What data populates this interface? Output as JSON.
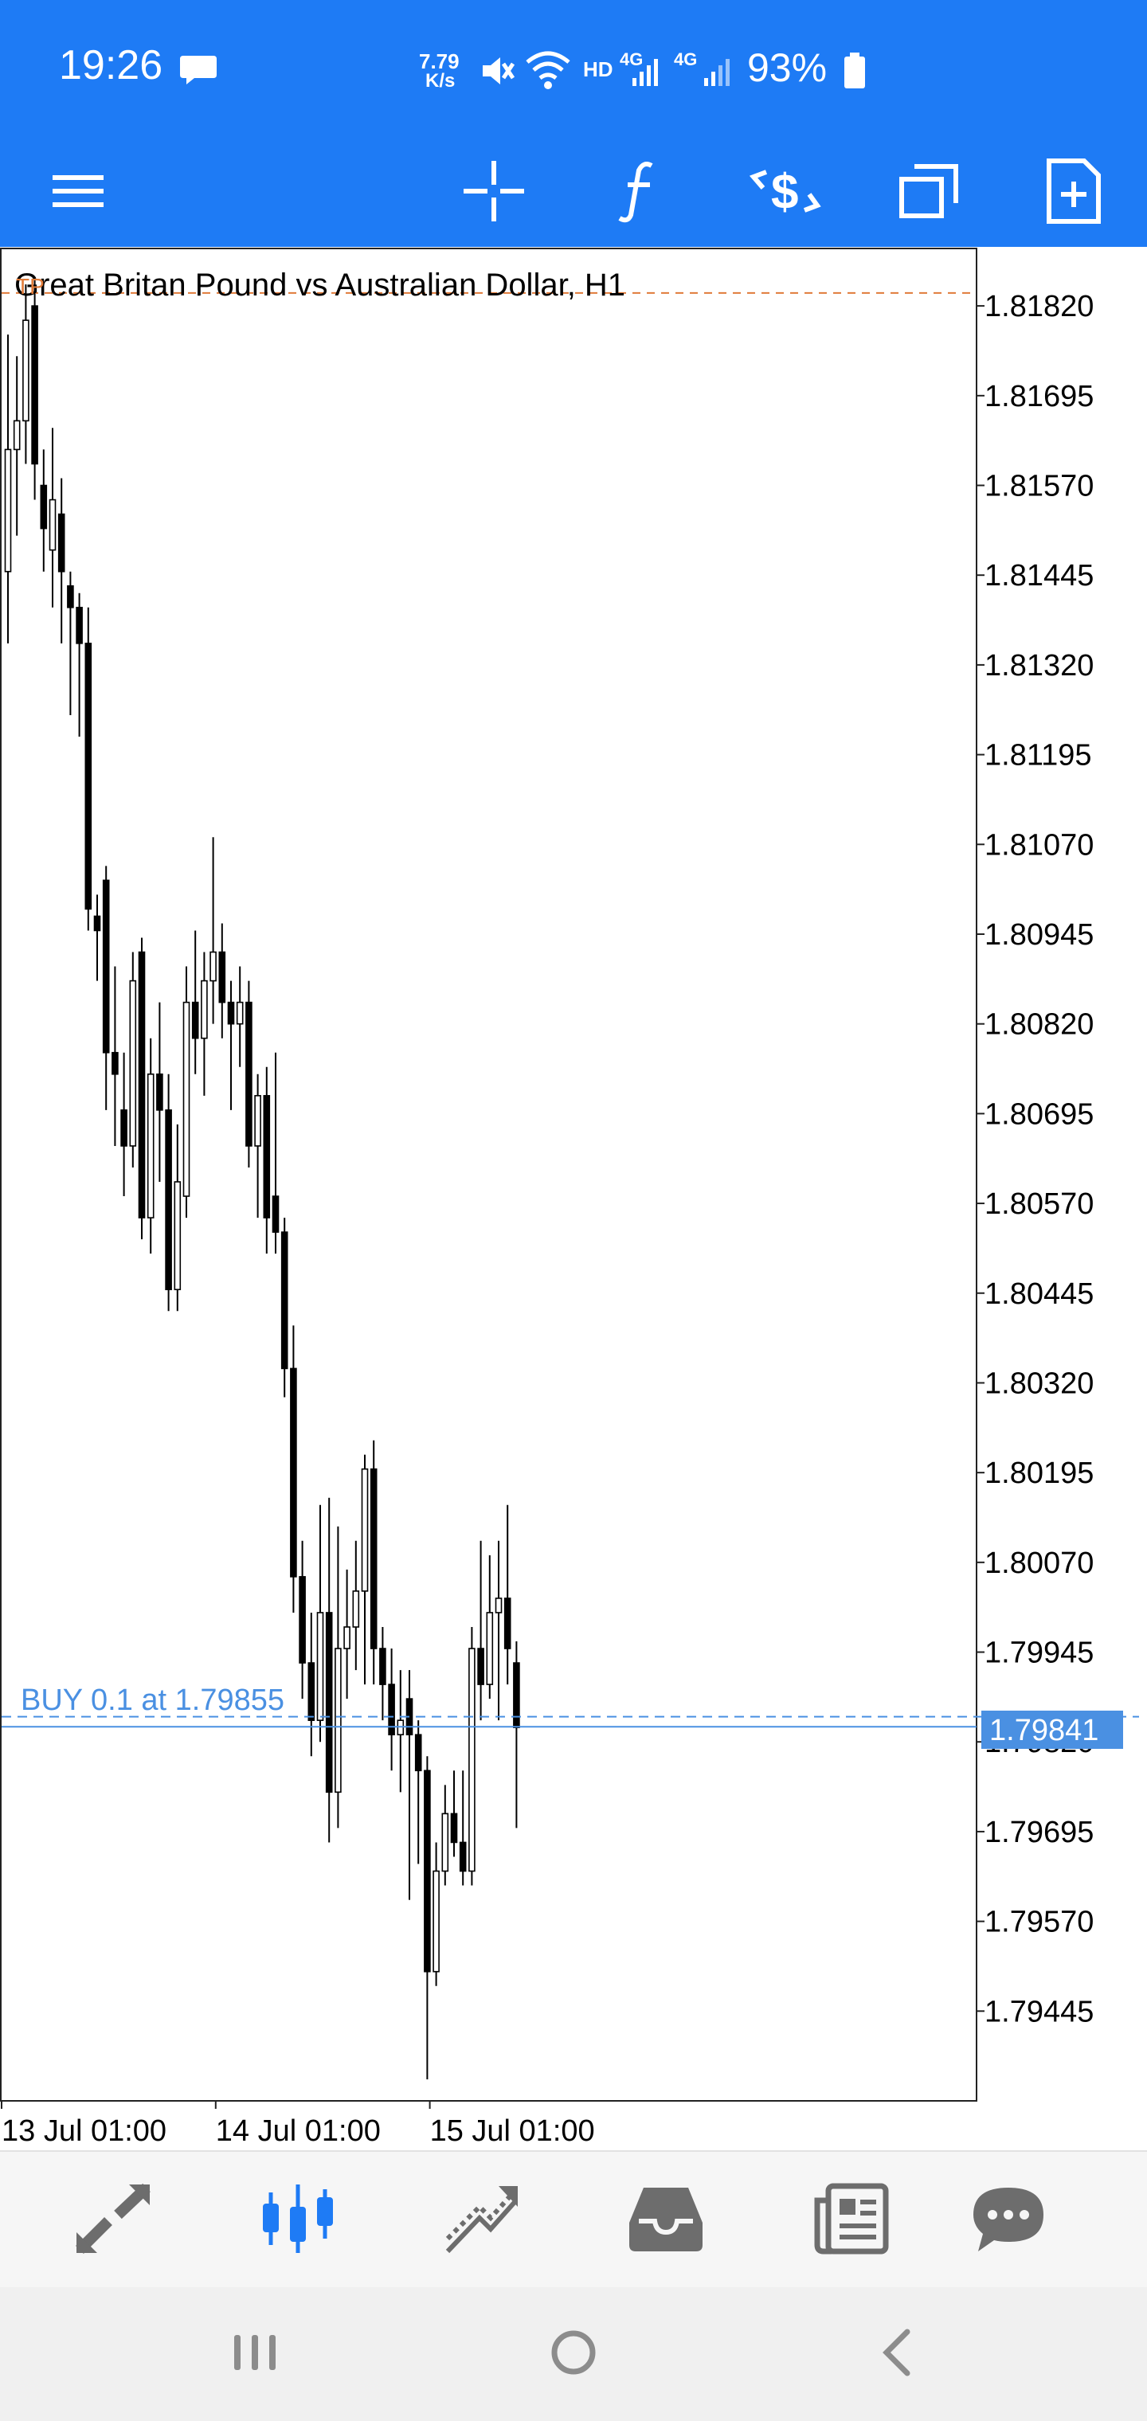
{
  "status_bar": {
    "time": "19:26",
    "net_speed_value": "7.79",
    "net_speed_unit": "K/s",
    "hd_label": "HD",
    "net1_label": "4G",
    "net2_label": "4G",
    "battery": "93%",
    "icons": [
      "message-icon",
      "mute-icon",
      "wifi-icon",
      "signal-icon",
      "signal-icon",
      "battery-icon"
    ]
  },
  "toolbar": {
    "icons": [
      "menu-icon",
      "crosshair-icon",
      "indicator-function-icon",
      "trade-icon",
      "window-icon",
      "add-object-icon"
    ]
  },
  "chart": {
    "title": "Great Britan Pound vs Australian Dollar, H1",
    "marker": "TP",
    "order_label": "BUY 0.1 at 1.79855",
    "current_price": "1.79841",
    "tp_price": 1.81838,
    "order_price": 1.79855,
    "bid_price": 1.79841,
    "bid_color": "#4a90e2",
    "tp_color": "#e07b39"
  },
  "chart_data": {
    "type": "candlestick",
    "title": "Great Britan Pound vs Australian Dollar, H1",
    "ylim": [
      1.7932,
      1.819
    ],
    "y_ticks": [
      "1.81820",
      "1.81695",
      "1.81570",
      "1.81445",
      "1.81320",
      "1.81195",
      "1.81070",
      "1.80945",
      "1.80820",
      "1.80695",
      "1.80570",
      "1.80445",
      "1.80320",
      "1.80195",
      "1.80070",
      "1.79945",
      "1.79820",
      "1.79695",
      "1.79570",
      "1.79445"
    ],
    "x_ticks": [
      {
        "label": "13 Jul 01:00",
        "index": 0
      },
      {
        "label": "14 Jul 01:00",
        "index": 24
      },
      {
        "label": "15 Jul 01:00",
        "index": 48
      }
    ],
    "candles": [
      {
        "o": 1.8145,
        "h": 1.8178,
        "l": 1.8135,
        "c": 1.8162
      },
      {
        "o": 1.8162,
        "h": 1.8175,
        "l": 1.815,
        "c": 1.8166
      },
      {
        "o": 1.8166,
        "h": 1.8185,
        "l": 1.816,
        "c": 1.818
      },
      {
        "o": 1.8182,
        "h": 1.8186,
        "l": 1.8155,
        "c": 1.816
      },
      {
        "o": 1.8157,
        "h": 1.8162,
        "l": 1.8145,
        "c": 1.8151
      },
      {
        "o": 1.8148,
        "h": 1.8165,
        "l": 1.814,
        "c": 1.8155
      },
      {
        "o": 1.8153,
        "h": 1.8158,
        "l": 1.8135,
        "c": 1.8145
      },
      {
        "o": 1.8143,
        "h": 1.8145,
        "l": 1.8125,
        "c": 1.814
      },
      {
        "o": 1.814,
        "h": 1.8142,
        "l": 1.8122,
        "c": 1.8135
      },
      {
        "o": 1.8135,
        "h": 1.814,
        "l": 1.8095,
        "c": 1.8098
      },
      {
        "o": 1.8097,
        "h": 1.81,
        "l": 1.8088,
        "c": 1.8095
      },
      {
        "o": 1.8102,
        "h": 1.8104,
        "l": 1.807,
        "c": 1.8078
      },
      {
        "o": 1.8078,
        "h": 1.809,
        "l": 1.8065,
        "c": 1.8075
      },
      {
        "o": 1.807,
        "h": 1.8078,
        "l": 1.8058,
        "c": 1.8065
      },
      {
        "o": 1.8065,
        "h": 1.8092,
        "l": 1.8062,
        "c": 1.8088
      },
      {
        "o": 1.8092,
        "h": 1.8094,
        "l": 1.8052,
        "c": 1.8055
      },
      {
        "o": 1.8055,
        "h": 1.808,
        "l": 1.805,
        "c": 1.8075
      },
      {
        "o": 1.8075,
        "h": 1.8085,
        "l": 1.806,
        "c": 1.807
      },
      {
        "o": 1.807,
        "h": 1.8075,
        "l": 1.8042,
        "c": 1.8045
      },
      {
        "o": 1.8045,
        "h": 1.8068,
        "l": 1.8042,
        "c": 1.806
      },
      {
        "o": 1.8058,
        "h": 1.809,
        "l": 1.8055,
        "c": 1.8085
      },
      {
        "o": 1.8085,
        "h": 1.8095,
        "l": 1.8075,
        "c": 1.808
      },
      {
        "o": 1.808,
        "h": 1.8092,
        "l": 1.8072,
        "c": 1.8088
      },
      {
        "o": 1.8088,
        "h": 1.8108,
        "l": 1.8082,
        "c": 1.8092
      },
      {
        "o": 1.8092,
        "h": 1.8096,
        "l": 1.808,
        "c": 1.8085
      },
      {
        "o": 1.8085,
        "h": 1.8088,
        "l": 1.807,
        "c": 1.8082
      },
      {
        "o": 1.8082,
        "h": 1.809,
        "l": 1.8076,
        "c": 1.8085
      },
      {
        "o": 1.8085,
        "h": 1.8088,
        "l": 1.8062,
        "c": 1.8065
      },
      {
        "o": 1.8065,
        "h": 1.8075,
        "l": 1.8055,
        "c": 1.8072
      },
      {
        "o": 1.8072,
        "h": 1.8076,
        "l": 1.805,
        "c": 1.8055
      },
      {
        "o": 1.8058,
        "h": 1.8078,
        "l": 1.805,
        "c": 1.8053
      },
      {
        "o": 1.8053,
        "h": 1.8055,
        "l": 1.803,
        "c": 1.8034
      },
      {
        "o": 1.8034,
        "h": 1.804,
        "l": 1.8,
        "c": 1.8005
      },
      {
        "o": 1.8005,
        "h": 1.801,
        "l": 1.7988,
        "c": 1.7993
      },
      {
        "o": 1.7993,
        "h": 1.8,
        "l": 1.798,
        "c": 1.7985
      },
      {
        "o": 1.7985,
        "h": 1.8015,
        "l": 1.7982,
        "c": 1.8
      },
      {
        "o": 1.8,
        "h": 1.8016,
        "l": 1.7968,
        "c": 1.7975
      },
      {
        "o": 1.7975,
        "h": 1.8012,
        "l": 1.797,
        "c": 1.7995
      },
      {
        "o": 1.7995,
        "h": 1.8006,
        "l": 1.7988,
        "c": 1.7998
      },
      {
        "o": 1.7998,
        "h": 1.801,
        "l": 1.7992,
        "c": 1.8003
      },
      {
        "o": 1.8003,
        "h": 1.8022,
        "l": 1.799,
        "c": 1.802
      },
      {
        "o": 1.802,
        "h": 1.8024,
        "l": 1.799,
        "c": 1.7995
      },
      {
        "o": 1.7995,
        "h": 1.7998,
        "l": 1.7985,
        "c": 1.799
      },
      {
        "o": 1.799,
        "h": 1.7995,
        "l": 1.7978,
        "c": 1.7983
      },
      {
        "o": 1.7983,
        "h": 1.7992,
        "l": 1.7975,
        "c": 1.7985
      },
      {
        "o": 1.7988,
        "h": 1.7992,
        "l": 1.796,
        "c": 1.7983
      },
      {
        "o": 1.7983,
        "h": 1.7985,
        "l": 1.7965,
        "c": 1.7978
      },
      {
        "o": 1.7978,
        "h": 1.798,
        "l": 1.7935,
        "c": 1.795
      },
      {
        "o": 1.795,
        "h": 1.7968,
        "l": 1.7948,
        "c": 1.7964
      },
      {
        "o": 1.7964,
        "h": 1.7976,
        "l": 1.7962,
        "c": 1.7972
      },
      {
        "o": 1.7972,
        "h": 1.7978,
        "l": 1.7966,
        "c": 1.7968
      },
      {
        "o": 1.7968,
        "h": 1.7978,
        "l": 1.7962,
        "c": 1.7964
      },
      {
        "o": 1.7964,
        "h": 1.7998,
        "l": 1.7962,
        "c": 1.7995
      },
      {
        "o": 1.7995,
        "h": 1.801,
        "l": 1.7985,
        "c": 1.799
      },
      {
        "o": 1.799,
        "h": 1.8008,
        "l": 1.7988,
        "c": 1.8
      },
      {
        "o": 1.8,
        "h": 1.801,
        "l": 1.7985,
        "c": 1.8002
      },
      {
        "o": 1.8002,
        "h": 1.8015,
        "l": 1.799,
        "c": 1.7995
      },
      {
        "o": 1.7993,
        "h": 1.7996,
        "l": 1.797,
        "c": 1.7984
      }
    ]
  },
  "x_axis": [
    "13 Jul 01:00",
    "14 Jul 01:00",
    "15 Jul 01:00"
  ],
  "bottom_nav": {
    "items": [
      {
        "name": "quotes-tab",
        "icon": "quotes-arrows-icon",
        "active": false
      },
      {
        "name": "chart-tab",
        "icon": "candlestick-chart-icon",
        "active": true
      },
      {
        "name": "trade-tab",
        "icon": "trade-trend-icon",
        "active": false
      },
      {
        "name": "history-tab",
        "icon": "history-inbox-icon",
        "active": false
      },
      {
        "name": "news-tab",
        "icon": "news-icon",
        "active": false
      },
      {
        "name": "chat-tab",
        "icon": "chat-icon",
        "active": false
      }
    ],
    "active_color": "#1e7bf5",
    "inactive_color": "#6d6d6d"
  },
  "system_nav": {
    "icons": [
      "recents-icon",
      "home-icon",
      "back-icon"
    ]
  }
}
